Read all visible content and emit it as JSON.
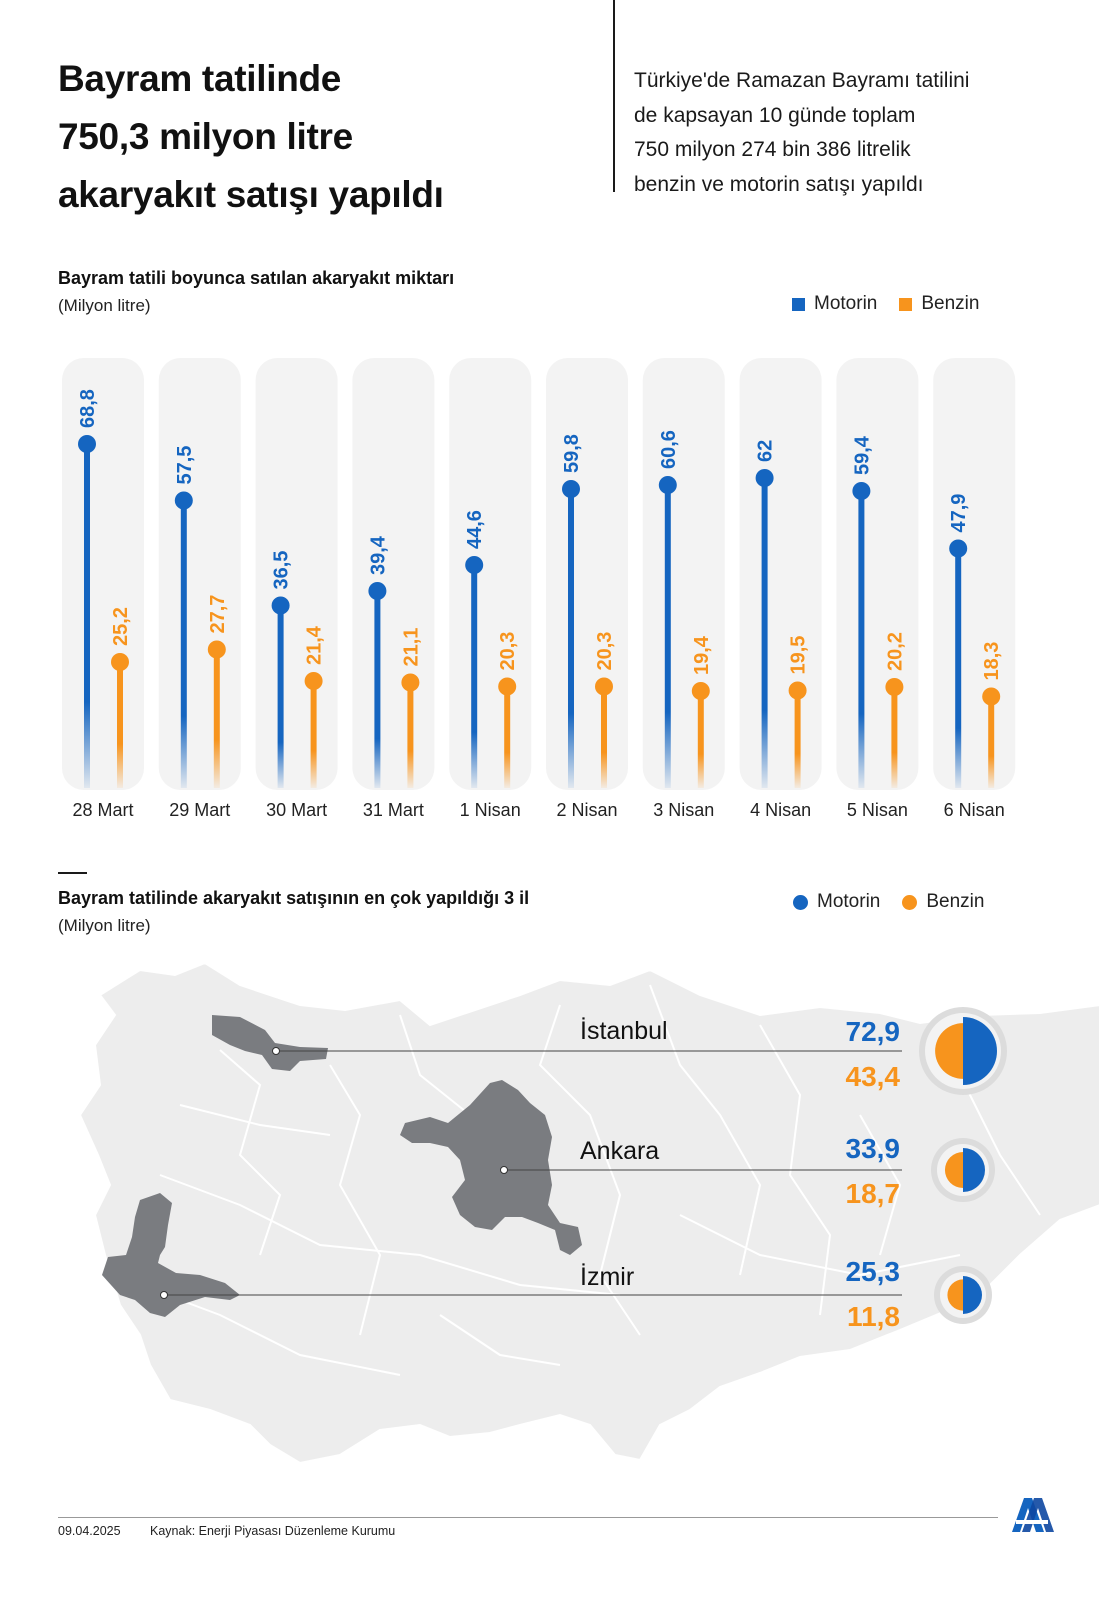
{
  "header": {
    "title_lines": [
      "Bayram tatilinde",
      "750,3 milyon litre",
      "akaryakıt satışı yapıldı"
    ],
    "subtitle_lines": [
      "Türkiye'de Ramazan Bayramı tatilini",
      "de kapsayan 10 günde toplam",
      "750 milyon 274 bin 386 litrelik",
      "benzin ve motorin satışı yapıldı"
    ]
  },
  "colors": {
    "motorin": "#1565c0",
    "benzin": "#f7941d",
    "bar_bg": "#f3f3f3",
    "province": "#7a7c80",
    "map_fill": "#ededed"
  },
  "chart_data": [
    {
      "type": "bar",
      "title": "Bayram tatili boyunca satılan akaryakıt miktarı",
      "unit": "(Milyon litre)",
      "categories": [
        "28 Mart",
        "29 Mart",
        "30 Mart",
        "31 Mart",
        "1 Nisan",
        "2 Nisan",
        "3 Nisan",
        "4 Nisan",
        "5 Nisan",
        "6 Nisan"
      ],
      "series": [
        {
          "name": "Motorin",
          "values": [
            68.8,
            57.5,
            36.5,
            39.4,
            44.6,
            59.8,
            60.6,
            62,
            59.4,
            47.9
          ],
          "labels": [
            "68,8",
            "57,5",
            "36,5",
            "39,4",
            "44,6",
            "59,8",
            "60,6",
            "62",
            "59,4",
            "47,9"
          ]
        },
        {
          "name": "Benzin",
          "values": [
            25.2,
            27.7,
            21.4,
            21.1,
            20.3,
            20.3,
            19.4,
            19.5,
            20.2,
            18.3
          ],
          "labels": [
            "25,2",
            "27,7",
            "21,4",
            "21,1",
            "20,3",
            "20,3",
            "19,4",
            "19,5",
            "20,2",
            "18,3"
          ]
        }
      ],
      "legend": "top-right"
    },
    {
      "type": "pie",
      "title": "Bayram tatilinde akaryakıt satışının en çok yapıldığı 3 il",
      "unit": "(Milyon litre)",
      "legend": "top-right",
      "series_names": [
        "Motorin",
        "Benzin"
      ],
      "provinces": [
        {
          "name": "İstanbul",
          "motorin": 72.9,
          "benzin": 43.4,
          "motorin_label": "72,9",
          "benzin_label": "43,4"
        },
        {
          "name": "Ankara",
          "motorin": 33.9,
          "benzin": 18.7,
          "motorin_label": "33,9",
          "benzin_label": "18,7"
        },
        {
          "name": "İzmir",
          "motorin": 25.3,
          "benzin": 11.8,
          "motorin_label": "25,3",
          "benzin_label": "11,8"
        }
      ]
    }
  ],
  "footer": {
    "date": "09.04.2025",
    "source": "Kaynak: Enerji Piyasası Düzenleme Kurumu",
    "logo_icon": "aa-logo-icon"
  }
}
